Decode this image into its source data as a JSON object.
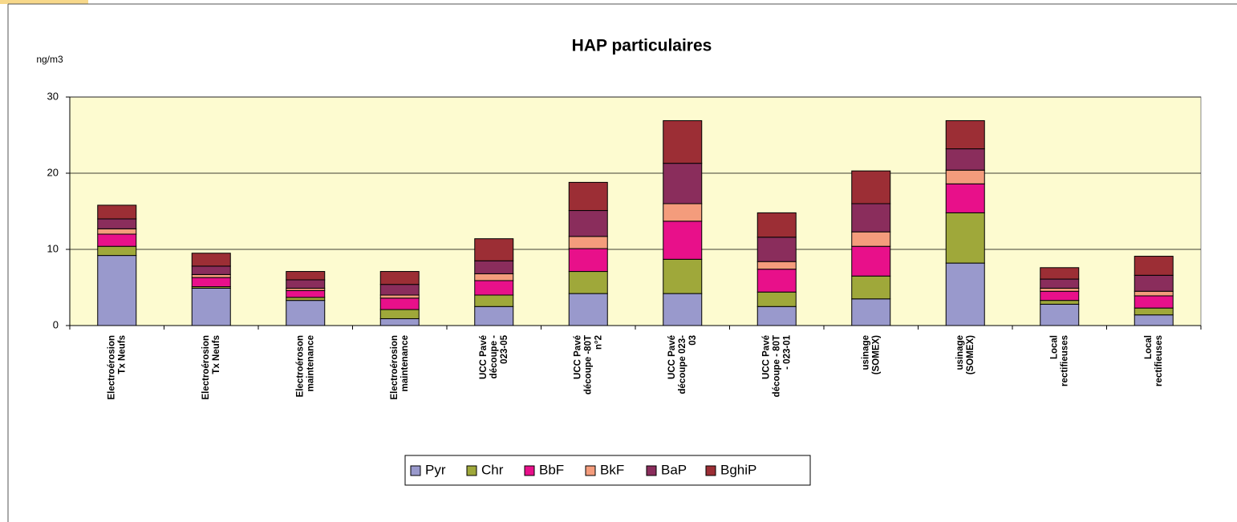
{
  "chart_data": {
    "type": "stacked_bar",
    "title": "HAP particulaires",
    "y_label": "ng/m3",
    "categories": [
      [
        "Electroérosion",
        "Tx Neufs"
      ],
      [
        "Electroérosion",
        "Tx Neufs"
      ],
      [
        "Electroéroson",
        "maintenance"
      ],
      [
        "Electroérosion",
        "maintenance"
      ],
      [
        "UCC Pavé",
        "découpe -",
        "023-05"
      ],
      [
        "UCC Pavé",
        "découpe -80T",
        "n°2"
      ],
      [
        "UCC Pavé",
        "découpe 023-",
        "03"
      ],
      [
        "UCC Pavé",
        "découpe - 80T",
        "- 023-01"
      ],
      [
        "usinage",
        "(SOMEX)"
      ],
      [
        "usinage",
        "(SOMEX)"
      ],
      [
        "Local",
        "rectifieuses"
      ],
      [
        "Local",
        "rectifieuses"
      ]
    ],
    "series": [
      {
        "name": "Pyr",
        "color": "#9999cc",
        "values": [
          9.2,
          4.9,
          3.3,
          0.9,
          2.5,
          4.2,
          4.2,
          2.5,
          3.5,
          8.2,
          2.8,
          1.4
        ]
      },
      {
        "name": "Chr",
        "color": "#9fa83a",
        "values": [
          1.2,
          0.2,
          0.4,
          1.2,
          1.5,
          2.9,
          4.5,
          1.9,
          3.0,
          6.6,
          0.5,
          0.9
        ]
      },
      {
        "name": "BbF",
        "color": "#e8108a",
        "values": [
          1.6,
          1.2,
          0.9,
          1.5,
          1.9,
          3.0,
          5.0,
          3.0,
          3.9,
          3.8,
          1.2,
          1.6
        ]
      },
      {
        "name": "BkF",
        "color": "#f49c7c",
        "values": [
          0.7,
          0.4,
          0.3,
          0.4,
          0.9,
          1.6,
          2.3,
          1.0,
          1.9,
          1.8,
          0.4,
          0.6
        ]
      },
      {
        "name": "BaP",
        "color": "#8a2d5c",
        "values": [
          1.3,
          1.1,
          1.1,
          1.4,
          1.7,
          3.4,
          5.3,
          3.2,
          3.7,
          2.8,
          1.2,
          2.1
        ]
      },
      {
        "name": "BghiP",
        "color": "#9c2e35",
        "values": [
          1.8,
          1.7,
          1.1,
          1.7,
          2.9,
          3.7,
          5.6,
          3.2,
          4.3,
          3.7,
          1.5,
          2.5
        ]
      }
    ],
    "ylim": [
      0,
      30
    ],
    "yticks": [
      0,
      10,
      20,
      30
    ],
    "grid": true,
    "legend": "bottom"
  }
}
